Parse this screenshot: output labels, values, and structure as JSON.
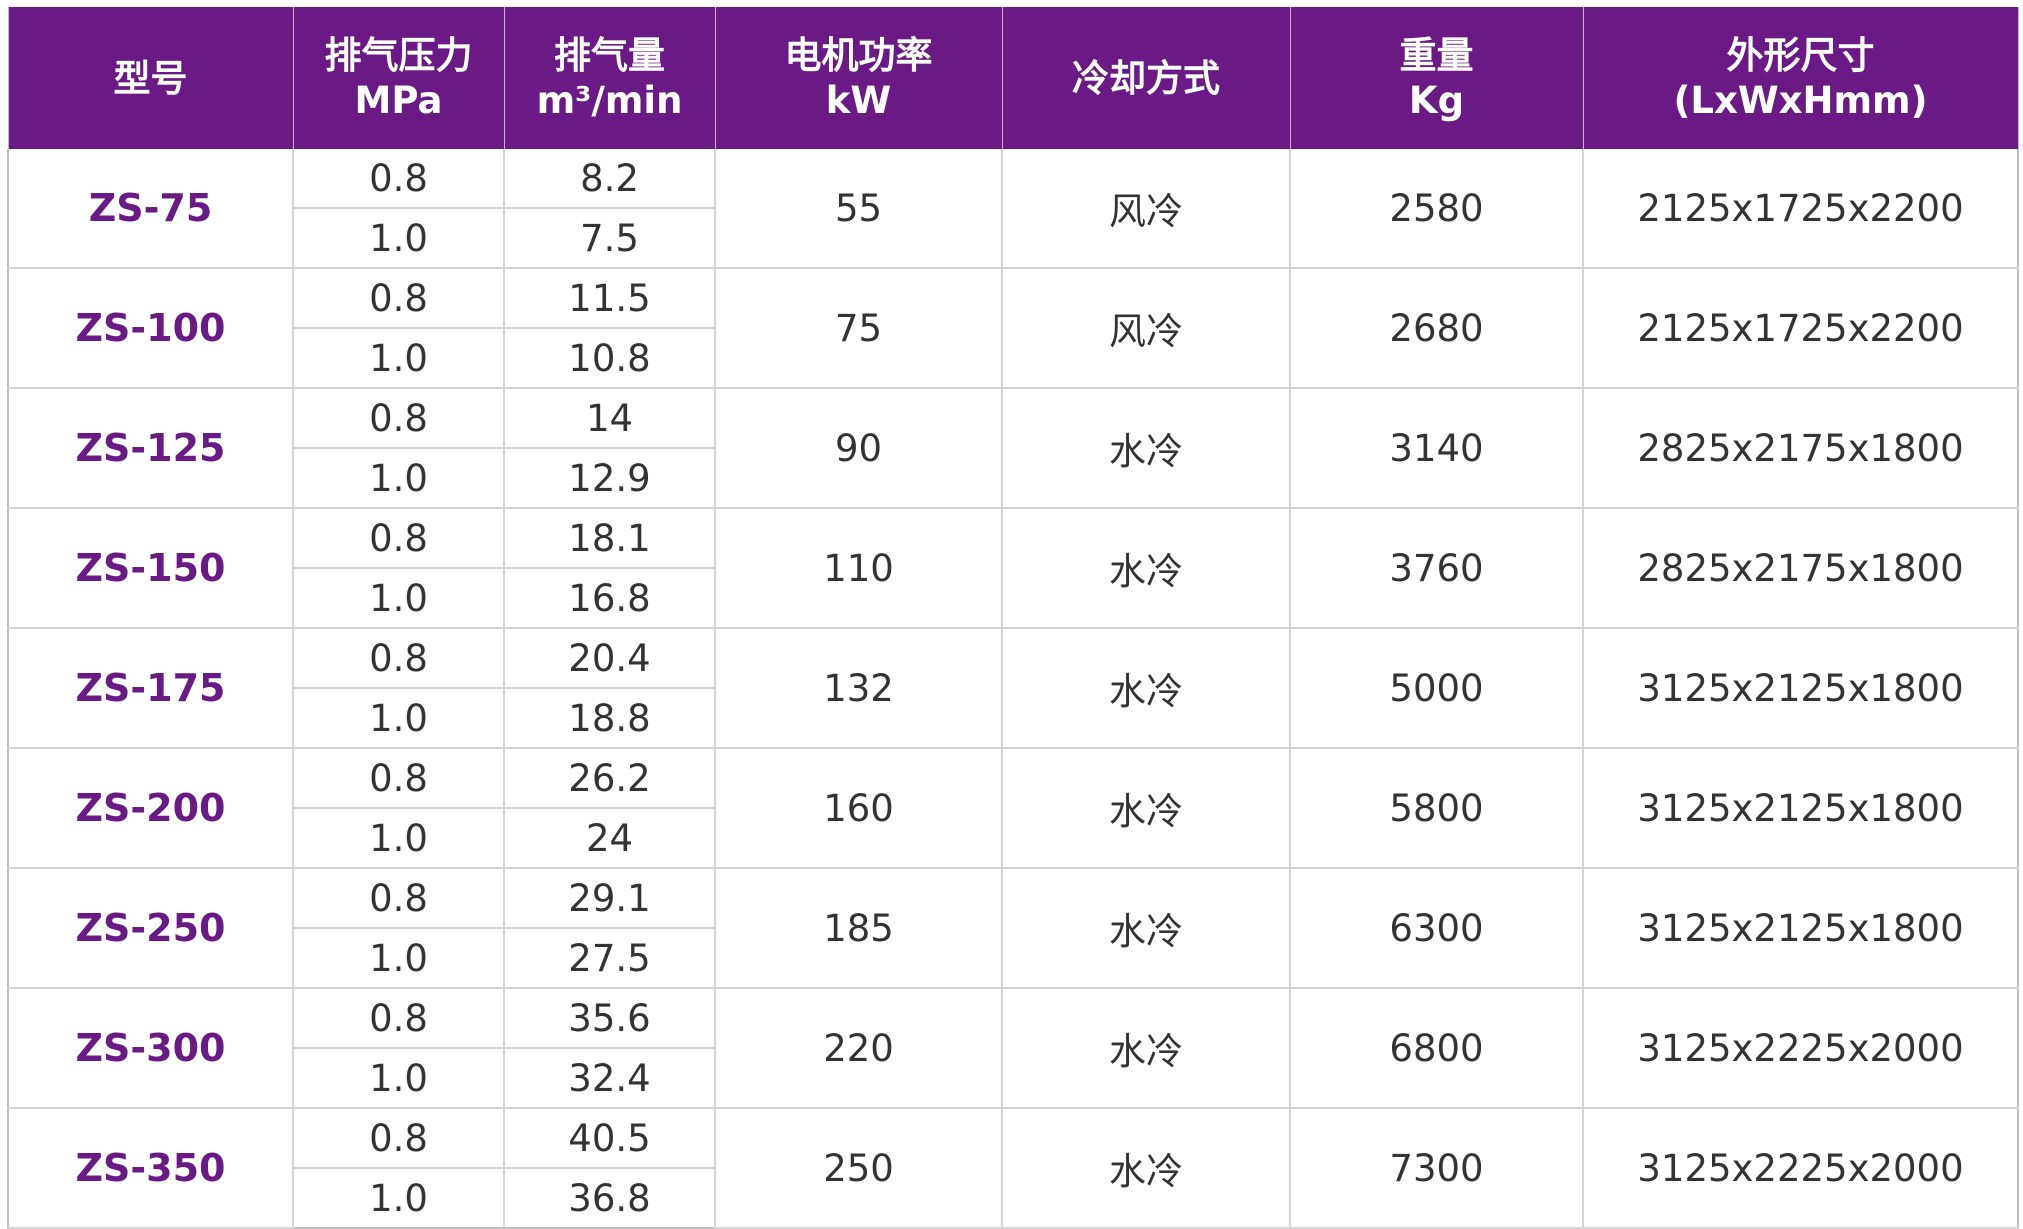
{
  "colors": {
    "header_bg": "#6a1a85",
    "header_text": "#ffffff",
    "model_text": "#6a1a85",
    "body_text": "#333333",
    "grid_line": "#d4d4d4"
  },
  "table": {
    "headers": [
      {
        "line1": "型号",
        "line2": ""
      },
      {
        "line1": "排气压力",
        "line2": "MPa"
      },
      {
        "line1": "排气量",
        "line2": "m³/min"
      },
      {
        "line1": "电机功率",
        "line2": "kW"
      },
      {
        "line1": "冷却方式",
        "line2": ""
      },
      {
        "line1": "重量",
        "line2": "Kg"
      },
      {
        "line1": "外形尺寸",
        "line2": "(LxWxHmm)"
      }
    ],
    "rows": [
      {
        "model": "ZS-75",
        "pressure": [
          "0.8",
          "1.0"
        ],
        "flow": [
          "8.2",
          "7.5"
        ],
        "power": "55",
        "cooling": "风冷",
        "weight": "2580",
        "dimensions": "2125x1725x2200"
      },
      {
        "model": "ZS-100",
        "pressure": [
          "0.8",
          "1.0"
        ],
        "flow": [
          "11.5",
          "10.8"
        ],
        "power": "75",
        "cooling": "风冷",
        "weight": "2680",
        "dimensions": "2125x1725x2200"
      },
      {
        "model": "ZS-125",
        "pressure": [
          "0.8",
          "1.0"
        ],
        "flow": [
          "14",
          "12.9"
        ],
        "power": "90",
        "cooling": "水冷",
        "weight": "3140",
        "dimensions": "2825x2175x1800"
      },
      {
        "model": "ZS-150",
        "pressure": [
          "0.8",
          "1.0"
        ],
        "flow": [
          "18.1",
          "16.8"
        ],
        "power": "110",
        "cooling": "水冷",
        "weight": "3760",
        "dimensions": "2825x2175x1800"
      },
      {
        "model": "ZS-175",
        "pressure": [
          "0.8",
          "1.0"
        ],
        "flow": [
          "20.4",
          "18.8"
        ],
        "power": "132",
        "cooling": "水冷",
        "weight": "5000",
        "dimensions": "3125x2125x1800"
      },
      {
        "model": "ZS-200",
        "pressure": [
          "0.8",
          "1.0"
        ],
        "flow": [
          "26.2",
          "24"
        ],
        "power": "160",
        "cooling": "水冷",
        "weight": "5800",
        "dimensions": "3125x2125x1800"
      },
      {
        "model": "ZS-250",
        "pressure": [
          "0.8",
          "1.0"
        ],
        "flow": [
          "29.1",
          "27.5"
        ],
        "power": "185",
        "cooling": "水冷",
        "weight": "6300",
        "dimensions": "3125x2125x1800"
      },
      {
        "model": "ZS-300",
        "pressure": [
          "0.8",
          "1.0"
        ],
        "flow": [
          "35.6",
          "32.4"
        ],
        "power": "220",
        "cooling": "水冷",
        "weight": "6800",
        "dimensions": "3125x2225x2000"
      },
      {
        "model": "ZS-350",
        "pressure": [
          "0.8",
          "1.0"
        ],
        "flow": [
          "40.5",
          "36.8"
        ],
        "power": "250",
        "cooling": "水冷",
        "weight": "7300",
        "dimensions": "3125x2225x2000"
      }
    ]
  }
}
